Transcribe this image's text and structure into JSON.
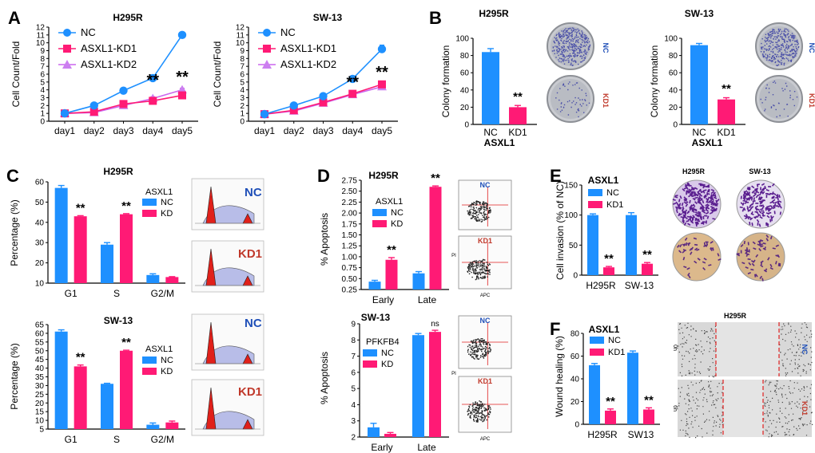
{
  "figure": {
    "panel_labels": [
      "A",
      "B",
      "C",
      "D",
      "E",
      "F"
    ],
    "colors": {
      "nc": "#1e90ff",
      "kd1": "#ff1a75",
      "kd2": "#cc7ff0",
      "kd2_line": "#cc66ee",
      "nc_text": "#1f4fb8",
      "kd_text": "#c0392b"
    }
  },
  "chart_data": [
    {
      "id": "A1",
      "type": "line",
      "title": "H295R",
      "categories": [
        "day1",
        "day2",
        "day3",
        "day4",
        "day5"
      ],
      "series": [
        {
          "name": "NC",
          "values": [
            1,
            2,
            3.9,
            5.5,
            11
          ],
          "errors": [
            0.1,
            0.1,
            0.15,
            0.15,
            0.2
          ]
        },
        {
          "name": "ASXL1-KD1",
          "values": [
            1,
            1.2,
            2.2,
            2.6,
            3.3
          ],
          "errors": [
            0.1,
            0.1,
            0.2,
            0.2,
            0.2
          ]
        },
        {
          "name": "ASXL1-KD2",
          "values": [
            1,
            1.1,
            2.0,
            2.9,
            4.0
          ],
          "errors": [
            0.1,
            0.1,
            0.2,
            0.2,
            0.2
          ]
        }
      ],
      "ylabel": "Cell Count/Fold",
      "ylim": [
        0,
        12
      ],
      "yticks": [
        0,
        1,
        2,
        3,
        4,
        5,
        6,
        7,
        8,
        9,
        10,
        11,
        12
      ],
      "annotations": [
        {
          "at": 3,
          "y": 4.6,
          "text": "**"
        },
        {
          "at": 4,
          "y": 5.0,
          "text": "**"
        }
      ]
    },
    {
      "id": "A2",
      "type": "line",
      "title": "SW-13",
      "categories": [
        "day1",
        "day2",
        "day3",
        "day4",
        "day5"
      ],
      "series": [
        {
          "name": "NC",
          "values": [
            0.9,
            2,
            3.2,
            5.4,
            9.2
          ],
          "errors": [
            0.1,
            0.1,
            0.15,
            0.15,
            0.5
          ]
        },
        {
          "name": "ASXL1-KD1",
          "values": [
            0.9,
            1.4,
            2.4,
            3.5,
            4.7
          ],
          "errors": [
            0.1,
            0.1,
            0.2,
            0.2,
            0.3
          ]
        },
        {
          "name": "ASXL1-KD2",
          "values": [
            0.9,
            1.3,
            2.3,
            3.4,
            4.4
          ],
          "errors": [
            0.1,
            0.1,
            0.2,
            0.2,
            0.3
          ]
        }
      ],
      "ylabel": "Cell Count/Fold",
      "ylim": [
        0,
        12
      ],
      "yticks": [
        0,
        1,
        2,
        3,
        4,
        5,
        6,
        7,
        8,
        9,
        10,
        11,
        12
      ],
      "annotations": [
        {
          "at": 3,
          "y": 4.3,
          "text": "**"
        },
        {
          "at": 4,
          "y": 5.6,
          "text": "**"
        }
      ]
    },
    {
      "id": "B1",
      "type": "bar",
      "title": "H295R",
      "categories": [
        "NC",
        "KD1"
      ],
      "values": [
        84,
        20
      ],
      "errors": [
        4,
        2
      ],
      "ylabel": "Colony formation",
      "xlabel": "ASXL1",
      "ylim": [
        0,
        100
      ],
      "annotations": [
        {
          "at": 1,
          "y": 26,
          "text": "**"
        }
      ],
      "thumbs": [
        "NC",
        "KD1"
      ]
    },
    {
      "id": "B2",
      "type": "bar",
      "title": "SW-13",
      "categories": [
        "NC",
        "KD1"
      ],
      "values": [
        92,
        29
      ],
      "errors": [
        2,
        2
      ],
      "ylabel": "Colony formation",
      "xlabel": "ASXL1",
      "ylim": [
        0,
        100
      ],
      "annotations": [
        {
          "at": 1,
          "y": 35,
          "text": "**"
        }
      ],
      "thumbs": [
        "NC",
        "KD1"
      ]
    },
    {
      "id": "C1",
      "type": "bar",
      "title": "H295R",
      "categories": [
        "G1",
        "S",
        "G2/M"
      ],
      "series": [
        {
          "name": "NC",
          "values": [
            57,
            29,
            14
          ],
          "errors": [
            1.2,
            1.0,
            0.6
          ]
        },
        {
          "name": "KD",
          "values": [
            43,
            44,
            13
          ],
          "errors": [
            0.3,
            0.3,
            0.2
          ]
        }
      ],
      "legend_title": "ASXL1",
      "ylabel": "Percentage (%)",
      "ylim": [
        10,
        60
      ],
      "yticks": [
        10,
        20,
        30,
        40,
        50,
        60
      ],
      "annotations": [
        {
          "cat": 0,
          "series": 1,
          "text": "**"
        },
        {
          "cat": 1,
          "series": 1,
          "text": "**"
        }
      ],
      "thumbs": [
        "NC",
        "KD1"
      ]
    },
    {
      "id": "C2",
      "type": "bar",
      "title": "SW-13",
      "categories": [
        "G1",
        "S",
        "G2/M"
      ],
      "series": [
        {
          "name": "NC",
          "values": [
            61,
            31,
            7.5
          ],
          "errors": [
            1.0,
            0.3,
            1.0
          ]
        },
        {
          "name": "KD",
          "values": [
            41,
            50,
            8.8
          ],
          "errors": [
            0.8,
            0.3,
            0.8
          ]
        }
      ],
      "legend_title": "ASXL1",
      "ylabel": "Percentage (%)",
      "ylim": [
        5,
        65
      ],
      "yticks": [
        5,
        10,
        15,
        20,
        25,
        30,
        35,
        40,
        45,
        50,
        55,
        60,
        65
      ],
      "annotations": [
        {
          "cat": 0,
          "series": 1,
          "text": "**"
        },
        {
          "cat": 1,
          "series": 1,
          "text": "**"
        }
      ],
      "thumbs": [
        "NC",
        "KD1"
      ]
    },
    {
      "id": "D1",
      "type": "bar",
      "title": "H295R",
      "categories": [
        "Early",
        "Late"
      ],
      "series": [
        {
          "name": "NC",
          "values": [
            0.43,
            0.62
          ],
          "errors": [
            0.03,
            0.04
          ]
        },
        {
          "name": "KD",
          "values": [
            0.93,
            2.6
          ],
          "errors": [
            0.05,
            0.02
          ]
        }
      ],
      "legend_title": "ASXL1",
      "ylabel": "% Apoptosis",
      "ylim": [
        0.25,
        2.75
      ],
      "yticks": [
        0.25,
        0.5,
        0.75,
        1.0,
        1.25,
        1.5,
        1.75,
        2.0,
        2.25,
        2.5,
        2.75
      ],
      "ytick_labels": [
        "0.25",
        "0.50",
        "0.75",
        "1.00",
        "1.25",
        "1.50",
        "1.75",
        "2.00",
        "2.25",
        "2.50",
        "2.75"
      ],
      "annotations": [
        {
          "cat": 0,
          "series": 1,
          "text": "**"
        },
        {
          "cat": 1,
          "series": 1,
          "text": "**"
        }
      ],
      "thumbs": [
        "NC",
        "KD1"
      ],
      "thumb_axis": [
        "PI",
        "APC"
      ]
    },
    {
      "id": "D2",
      "type": "bar",
      "title": "SW-13",
      "categories": [
        "Early",
        "Late"
      ],
      "series": [
        {
          "name": "NC",
          "values": [
            2.6,
            8.3
          ],
          "errors": [
            0.25,
            0.1
          ]
        },
        {
          "name": "KD",
          "values": [
            2.2,
            8.5
          ],
          "errors": [
            0.08,
            0.1
          ]
        }
      ],
      "legend_title": "PFKFB4",
      "ylabel": "% Apoptosis",
      "ylim": [
        2,
        9
      ],
      "yticks": [
        2,
        3,
        4,
        5,
        6,
        7,
        8,
        9
      ],
      "annotations": [
        {
          "cat": 1,
          "series": 1,
          "text": "ns"
        }
      ],
      "thumbs": [
        "NC",
        "KD1"
      ],
      "thumb_axis": [
        "PI",
        "APC"
      ]
    },
    {
      "id": "E",
      "type": "bar",
      "title": "ASXL1",
      "categories": [
        "H295R",
        "SW-13"
      ],
      "series": [
        {
          "name": "NC",
          "values": [
            100,
            100
          ],
          "errors": [
            2,
            4
          ]
        },
        {
          "name": "KD1",
          "values": [
            13,
            19
          ],
          "errors": [
            1.5,
            2
          ]
        }
      ],
      "ylabel": "Cell invasion (% of NC)",
      "ylim": [
        0,
        150
      ],
      "yticks": [
        0,
        50,
        100,
        150
      ],
      "annotations": [
        {
          "cat": 0,
          "series": 1,
          "text": "**"
        },
        {
          "cat": 1,
          "series": 1,
          "text": "**"
        }
      ],
      "thumb_titles": [
        "H295R",
        "SW-13"
      ]
    },
    {
      "id": "F",
      "type": "bar",
      "title": "ASXL1",
      "categories": [
        "H295R",
        "SW13"
      ],
      "series": [
        {
          "name": "NC",
          "values": [
            52,
            63
          ],
          "errors": [
            1.5,
            1.5
          ]
        },
        {
          "name": "KD1",
          "values": [
            12,
            13
          ],
          "errors": [
            1.5,
            1.5
          ]
        }
      ],
      "ylabel": "Wound healing  (%)",
      "ylim": [
        0,
        80
      ],
      "yticks": [
        0,
        20,
        40,
        60,
        80
      ],
      "annotations": [
        {
          "cat": 0,
          "series": 1,
          "text": "**"
        },
        {
          "cat": 1,
          "series": 1,
          "text": "**"
        }
      ],
      "thumb_title": "H295R",
      "thumb_rows": [
        "0h",
        "6h"
      ],
      "thumb_side": [
        "NC",
        "KD1"
      ]
    }
  ]
}
